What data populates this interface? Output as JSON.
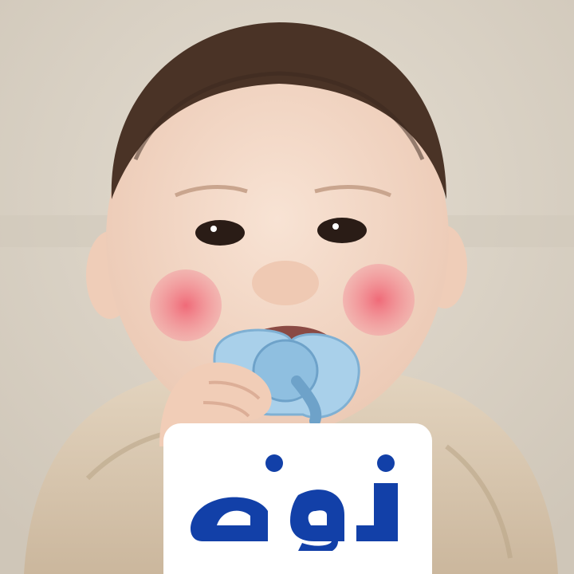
{
  "photo": {
    "subject": "baby-with-pacifier",
    "colors": {
      "background": "#d9d2c6",
      "skin": "#f2d6c4",
      "cheek": "#f07a86",
      "hair": "#4a3326",
      "pacifier": "#a9d0ea",
      "garment": "#d8c6ae"
    }
  },
  "logo": {
    "word": "نونه",
    "color": "#1240a8",
    "card_color": "#ffffff"
  }
}
